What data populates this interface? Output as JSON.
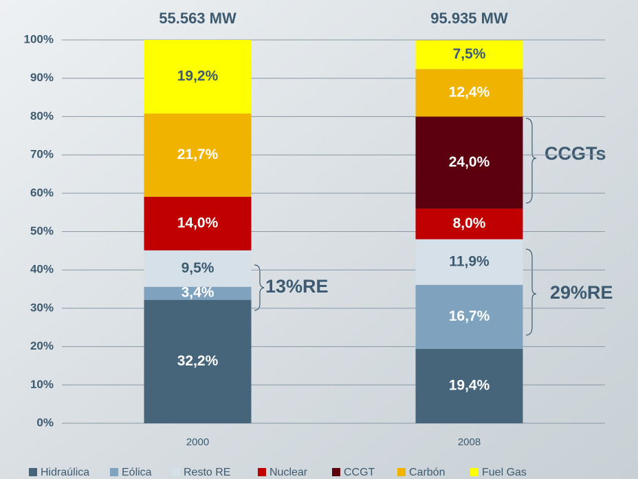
{
  "chart_data": {
    "type": "stacked_bar",
    "categories": [
      "2000",
      "2008"
    ],
    "bar_totals": [
      "55.563 MW",
      "95.935 MW"
    ],
    "series": [
      {
        "name": "Hidraúlica",
        "color": "#46647a",
        "values": [
          32.2,
          19.4
        ],
        "value_labels": [
          "32,2%",
          "19,4%"
        ]
      },
      {
        "name": "Eólica",
        "color": "#7fa3bf",
        "values": [
          3.4,
          16.7
        ],
        "value_labels": [
          "3,4%",
          "16,7%"
        ]
      },
      {
        "name": "Resto RE",
        "color": "#d5e0e8",
        "values": [
          9.5,
          11.9
        ],
        "value_labels": [
          "9,5%",
          "11,9%"
        ]
      },
      {
        "name": "Nuclear",
        "color": "#c00000",
        "values": [
          14.0,
          8.0
        ],
        "value_labels": [
          "14,0%",
          "8,0%"
        ]
      },
      {
        "name": "CCGT",
        "color": "#5c0010",
        "values": [
          null,
          24.0
        ],
        "value_labels": [
          null,
          "24,0%"
        ]
      },
      {
        "name": "Carbón",
        "color": "#f0b400",
        "values": [
          21.7,
          12.4
        ],
        "value_labels": [
          "21,7%",
          "12,4%"
        ]
      },
      {
        "name": "Fuel Gas",
        "color": "#ffff00",
        "values": [
          19.2,
          7.5
        ],
        "value_labels": [
          "19,2%",
          "7,5%"
        ]
      }
    ],
    "annotations": [
      "13%RE",
      "29%RE",
      "CCGTs"
    ],
    "ylim": [
      0,
      100
    ],
    "yticks": [
      {
        "value": 0,
        "label": "0%"
      },
      {
        "value": 10,
        "label": "10%"
      },
      {
        "value": 20,
        "label": "20%"
      },
      {
        "value": 30,
        "label": "30%"
      },
      {
        "value": 40,
        "label": "40%"
      },
      {
        "value": 50,
        "label": "50%"
      },
      {
        "value": 60,
        "label": "60%"
      },
      {
        "value": 70,
        "label": "70%"
      },
      {
        "value": 80,
        "label": "80%"
      },
      {
        "value": 90,
        "label": "90%"
      },
      {
        "value": 100,
        "label": "100%"
      }
    ],
    "grid": true
  }
}
